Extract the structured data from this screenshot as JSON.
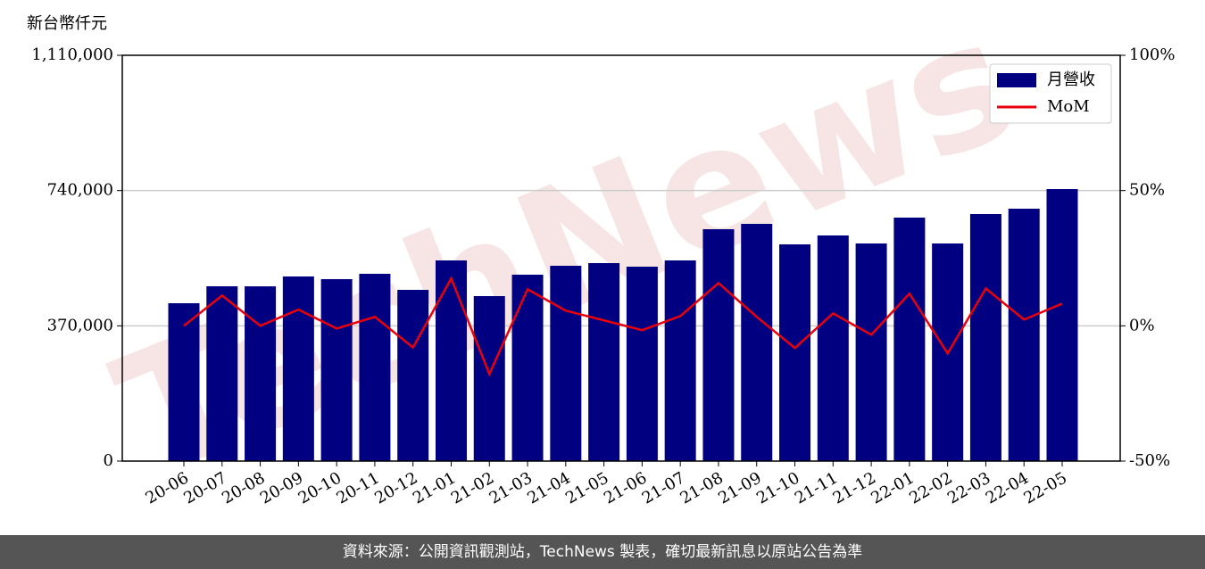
{
  "chart_data": {
    "type": "bar_line",
    "y_label": "新台幣仟元",
    "watermark": "TechNews",
    "categories": [
      "20-06",
      "20-07",
      "20-08",
      "20-09",
      "20-10",
      "20-11",
      "20-12",
      "21-01",
      "21-02",
      "21-03",
      "21-04",
      "21-05",
      "21-06",
      "21-07",
      "21-08",
      "21-09",
      "21-10",
      "21-11",
      "21-12",
      "22-01",
      "22-02",
      "22-03",
      "22-04",
      "22-05"
    ],
    "series": [
      {
        "name": "月營收",
        "type": "bar",
        "color": "#000080",
        "values": [
          431800,
          478200,
          478000,
          505000,
          497700,
          512300,
          468400,
          548900,
          451300,
          509900,
          534300,
          541600,
          531800,
          548900,
          634300,
          648900,
          592800,
          617200,
          595300,
          666000,
          595300,
          675800,
          690400,
          744100
        ]
      },
      {
        "name": "MoM",
        "type": "line",
        "axis": "y2",
        "color": "#e8000b",
        "values": [
          0,
          11.2,
          0,
          6,
          -1,
          3.3,
          -8,
          17.5,
          -17.8,
          13.5,
          5.6,
          2,
          -1.6,
          3.6,
          15.8,
          3.3,
          -8.2,
          4.6,
          -3.3,
          11.9,
          -10.2,
          13.8,
          2.3,
          8.2
        ]
      }
    ],
    "ylim": [
      0,
      1110000
    ],
    "yticks": [
      0,
      {
        "value": 370000,
        "label": "370,000"
      },
      {
        "value": 740000,
        "label": "740,000"
      },
      {
        "value": 1110000,
        "label": "1,110,000"
      }
    ],
    "y2lim": [
      -50,
      100
    ],
    "y2ticks": [
      {
        "value": -50,
        "label": "-50%"
      },
      {
        "value": 0,
        "label": "0%"
      },
      {
        "value": 50,
        "label": "50%"
      },
      {
        "value": 100,
        "label": "100%"
      }
    ],
    "grid": true,
    "legend": "upper-right"
  },
  "footer": "資料來源：公開資訊觀測站，TechNews 製表，確切最新訊息以原站公告為準"
}
